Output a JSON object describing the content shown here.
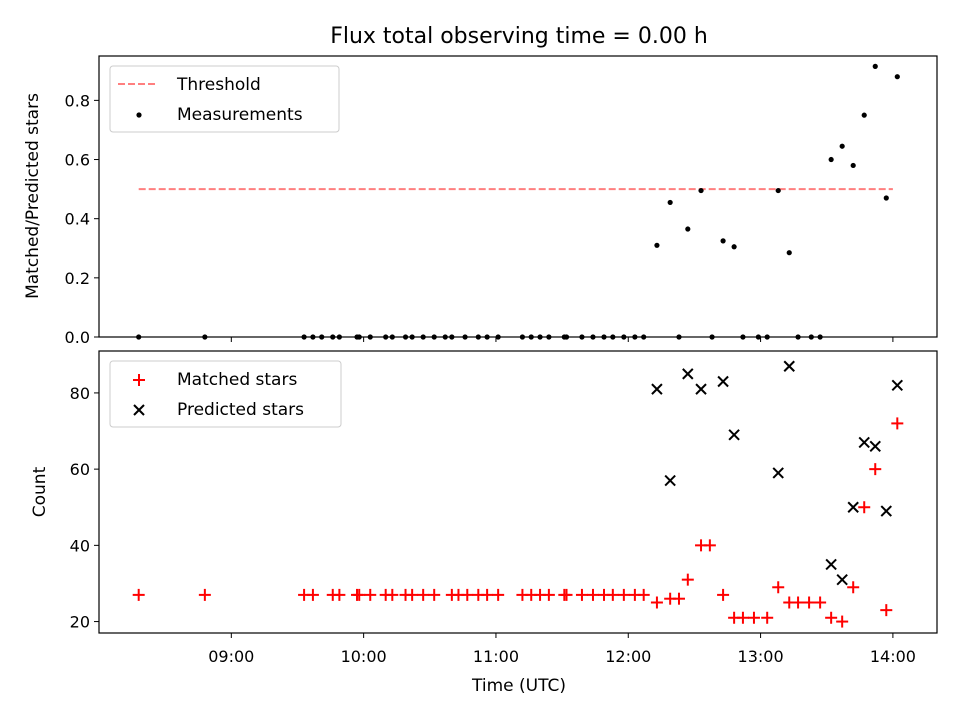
{
  "chart_data": [
    {
      "type": "scatter",
      "title": "Flux total observing time = 0.00 h",
      "xlabel": "",
      "ylabel": "Matched/Predicted stars",
      "ylim": [
        0,
        0.95
      ],
      "yticks": [
        "0.0",
        "0.2",
        "0.4",
        "0.6",
        "0.8"
      ],
      "legend_position": "top-left",
      "threshold": {
        "name": "Threshold",
        "value": 0.5,
        "x": [
          "08:18",
          "14:00"
        ],
        "color": "#ff7f7f",
        "style": "dashed"
      },
      "series": [
        {
          "name": "Measurements",
          "color": "#000000",
          "marker": "dot",
          "points": [
            [
              "08:18",
              0.0
            ],
            [
              "08:48",
              0.0
            ],
            [
              "09:33",
              0.0
            ],
            [
              "09:37",
              0.0
            ],
            [
              "09:41",
              0.0
            ],
            [
              "09:46",
              0.0
            ],
            [
              "09:49",
              0.0
            ],
            [
              "09:57",
              0.0
            ],
            [
              "09:58",
              0.0
            ],
            [
              "10:03",
              0.0
            ],
            [
              "10:10",
              0.0
            ],
            [
              "10:13",
              0.0
            ],
            [
              "10:19",
              0.0
            ],
            [
              "10:22",
              0.0
            ],
            [
              "10:27",
              0.0
            ],
            [
              "10:32",
              0.0
            ],
            [
              "10:37",
              0.0
            ],
            [
              "10:40",
              0.0
            ],
            [
              "10:46",
              0.0
            ],
            [
              "10:52",
              0.0
            ],
            [
              "10:56",
              0.0
            ],
            [
              "11:01",
              0.0
            ],
            [
              "11:12",
              0.0
            ],
            [
              "11:16",
              0.0
            ],
            [
              "11:20",
              0.0
            ],
            [
              "11:24",
              0.0
            ],
            [
              "11:31",
              0.0
            ],
            [
              "11:32",
              0.0
            ],
            [
              "11:39",
              0.0
            ],
            [
              "11:44",
              0.0
            ],
            [
              "11:49",
              0.0
            ],
            [
              "11:53",
              0.0
            ],
            [
              "11:58",
              0.0
            ],
            [
              "12:03",
              0.0
            ],
            [
              "12:07",
              0.0
            ],
            [
              "12:13",
              0.31
            ],
            [
              "12:19",
              0.455
            ],
            [
              "12:23",
              0.0
            ],
            [
              "12:27",
              0.365
            ],
            [
              "12:33",
              0.495
            ],
            [
              "12:38",
              0.0
            ],
            [
              "12:43",
              0.325
            ],
            [
              "12:48",
              0.305
            ],
            [
              "12:52",
              0.0
            ],
            [
              "12:59",
              0.0
            ],
            [
              "13:03",
              0.0
            ],
            [
              "13:08",
              0.495
            ],
            [
              "13:13",
              0.285
            ],
            [
              "13:17",
              0.0
            ],
            [
              "13:23",
              0.0
            ],
            [
              "13:27",
              0.0
            ],
            [
              "13:32",
              0.6
            ],
            [
              "13:37",
              0.645
            ],
            [
              "13:42",
              0.58
            ],
            [
              "13:47",
              0.75
            ],
            [
              "13:52",
              0.915
            ],
            [
              "13:57",
              0.47
            ],
            [
              "14:02",
              0.88
            ]
          ]
        }
      ]
    },
    {
      "type": "scatter",
      "title": "",
      "xlabel": "Time (UTC)",
      "ylabel": "Count",
      "ylim": [
        17,
        91
      ],
      "yticks": [
        "20",
        "40",
        "60",
        "80"
      ],
      "xticks": [
        "09:00",
        "10:00",
        "11:00",
        "12:00",
        "13:00",
        "14:00"
      ],
      "xlim": [
        "08:00",
        "14:20"
      ],
      "legend_position": "top-left",
      "series": [
        {
          "name": "Matched stars",
          "color": "#ff0000",
          "marker": "plus",
          "points": [
            [
              "08:18",
              27
            ],
            [
              "08:48",
              27
            ],
            [
              "09:33",
              27
            ],
            [
              "09:37",
              27
            ],
            [
              "09:46",
              27
            ],
            [
              "09:49",
              27
            ],
            [
              "09:57",
              27
            ],
            [
              "09:58",
              27
            ],
            [
              "10:03",
              27
            ],
            [
              "10:10",
              27
            ],
            [
              "10:13",
              27
            ],
            [
              "10:19",
              27
            ],
            [
              "10:22",
              27
            ],
            [
              "10:27",
              27
            ],
            [
              "10:32",
              27
            ],
            [
              "10:40",
              27
            ],
            [
              "10:43",
              27
            ],
            [
              "10:47",
              27
            ],
            [
              "10:52",
              27
            ],
            [
              "10:56",
              27
            ],
            [
              "11:01",
              27
            ],
            [
              "11:12",
              27
            ],
            [
              "11:16",
              27
            ],
            [
              "11:20",
              27
            ],
            [
              "11:24",
              27
            ],
            [
              "11:31",
              27
            ],
            [
              "11:32",
              27
            ],
            [
              "11:39",
              27
            ],
            [
              "11:44",
              27
            ],
            [
              "11:49",
              27
            ],
            [
              "11:53",
              27
            ],
            [
              "11:58",
              27
            ],
            [
              "12:03",
              27
            ],
            [
              "12:07",
              27
            ],
            [
              "12:13",
              25
            ],
            [
              "12:19",
              26
            ],
            [
              "12:23",
              26
            ],
            [
              "12:27",
              31
            ],
            [
              "12:33",
              40
            ],
            [
              "12:37",
              40
            ],
            [
              "12:43",
              27
            ],
            [
              "12:48",
              21
            ],
            [
              "12:52",
              21
            ],
            [
              "12:57",
              21
            ],
            [
              "13:03",
              21
            ],
            [
              "13:08",
              29
            ],
            [
              "13:13",
              25
            ],
            [
              "13:17",
              25
            ],
            [
              "13:22",
              25
            ],
            [
              "13:27",
              25
            ],
            [
              "13:32",
              21
            ],
            [
              "13:37",
              20
            ],
            [
              "13:42",
              29
            ],
            [
              "13:47",
              50
            ],
            [
              "13:52",
              60
            ],
            [
              "13:57",
              23
            ],
            [
              "14:02",
              72
            ]
          ]
        },
        {
          "name": "Predicted stars",
          "color": "#000000",
          "marker": "x",
          "points": [
            [
              "12:13",
              81
            ],
            [
              "12:19",
              57
            ],
            [
              "12:27",
              85
            ],
            [
              "12:33",
              81
            ],
            [
              "12:43",
              83
            ],
            [
              "12:48",
              69
            ],
            [
              "13:08",
              59
            ],
            [
              "13:13",
              87
            ],
            [
              "13:32",
              35
            ],
            [
              "13:37",
              31
            ],
            [
              "13:42",
              50
            ],
            [
              "13:47",
              67
            ],
            [
              "13:52",
              66
            ],
            [
              "13:57",
              49
            ],
            [
              "14:02",
              82
            ]
          ]
        }
      ]
    }
  ]
}
